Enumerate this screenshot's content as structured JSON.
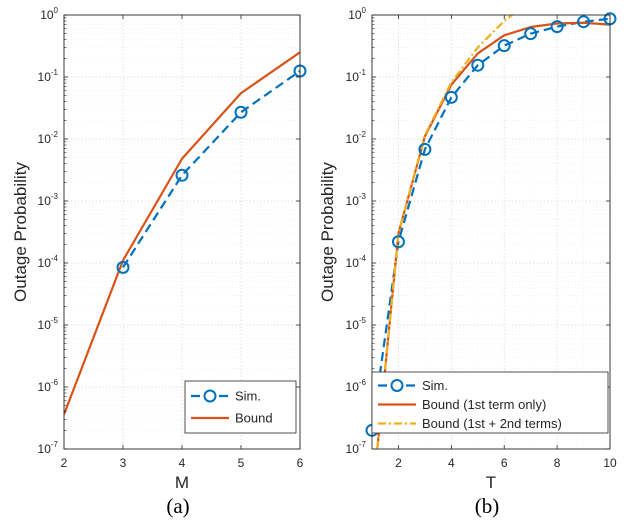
{
  "chart_data": [
    {
      "type": "line",
      "panel_caption": "(a)",
      "xlabel": "M",
      "ylabel": "Outage Probability",
      "xlim": [
        2,
        6
      ],
      "ylim": [
        1e-07,
        1
      ],
      "yscale": "log",
      "xticks": [
        2,
        3,
        4,
        5,
        6
      ],
      "yticks": [
        {
          "base": "10",
          "exp": "-7"
        },
        {
          "base": "10",
          "exp": "-6"
        },
        {
          "base": "10",
          "exp": "-5"
        },
        {
          "base": "10",
          "exp": "-4"
        },
        {
          "base": "10",
          "exp": "-3"
        },
        {
          "base": "10",
          "exp": "-2"
        },
        {
          "base": "10",
          "exp": "-1"
        },
        {
          "base": "10",
          "exp": "0"
        }
      ],
      "grid": true,
      "legend_position": "bottom-right",
      "series": [
        {
          "name": "Sim.",
          "color": "#0072BD",
          "line": "dashed",
          "marker": "circle",
          "x": [
            3,
            4,
            5,
            6
          ],
          "y": [
            8.5e-05,
            0.0026,
            0.027,
            0.125
          ]
        },
        {
          "name": "Bound",
          "color": "#D95319",
          "line": "solid",
          "marker": "none",
          "x": [
            2,
            3,
            4,
            5,
            6
          ],
          "y": [
            3.6e-07,
            0.00011,
            0.0048,
            0.055,
            0.25
          ]
        }
      ]
    },
    {
      "type": "line",
      "panel_caption": "(b)",
      "xlabel": "T",
      "ylabel": "Outage Probability",
      "xlim": [
        1,
        10
      ],
      "ylim": [
        1e-07,
        1
      ],
      "yscale": "log",
      "xticks": [
        2,
        4,
        6,
        8,
        10
      ],
      "yticks": [
        {
          "base": "10",
          "exp": "-7"
        },
        {
          "base": "10",
          "exp": "-6"
        },
        {
          "base": "10",
          "exp": "-5"
        },
        {
          "base": "10",
          "exp": "-4"
        },
        {
          "base": "10",
          "exp": "-3"
        },
        {
          "base": "10",
          "exp": "-2"
        },
        {
          "base": "10",
          "exp": "-1"
        },
        {
          "base": "10",
          "exp": "0"
        }
      ],
      "grid": true,
      "legend_position": "bottom-right",
      "series": [
        {
          "name": "Sim.",
          "color": "#0072BD",
          "line": "dashed",
          "marker": "circle",
          "x": [
            1,
            2,
            3,
            4,
            5,
            6,
            7,
            8,
            9,
            10
          ],
          "y": [
            2e-07,
            0.00022,
            0.0068,
            0.047,
            0.155,
            0.32,
            0.5,
            0.65,
            0.78,
            0.87
          ]
        },
        {
          "name": "Bound (1st term only)",
          "color": "#D95319",
          "line": "solid",
          "marker": "none",
          "x": [
            1.2,
            2,
            3,
            4,
            5,
            6,
            7,
            8,
            9,
            10
          ],
          "y": [
            1e-07,
            0.0003,
            0.011,
            0.075,
            0.24,
            0.47,
            0.64,
            0.73,
            0.75,
            0.7
          ]
        },
        {
          "name": "Bound (1st + 2nd terms)",
          "color": "#EDB120",
          "line": "dashdot",
          "marker": "none",
          "x": [
            1.2,
            2,
            3,
            4,
            5,
            6,
            6.3
          ],
          "y": [
            1e-07,
            0.0003,
            0.0115,
            0.082,
            0.3,
            0.8,
            1.0
          ]
        }
      ]
    }
  ]
}
